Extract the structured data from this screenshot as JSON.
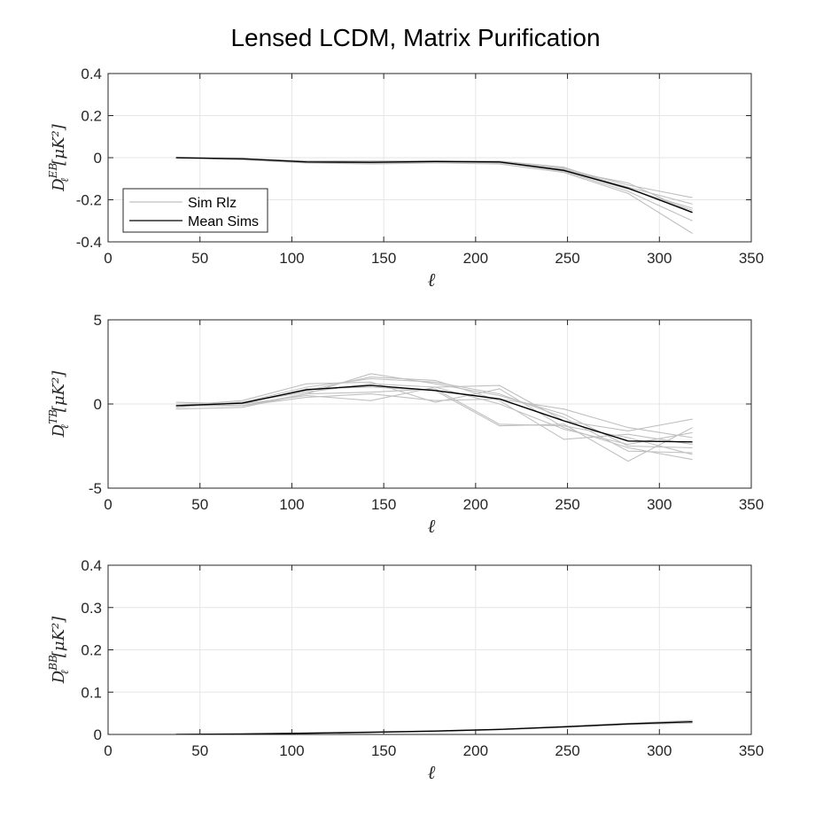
{
  "figure": {
    "title": "Lensed LCDM, Matrix Purification"
  },
  "colors": {
    "sims": "#c0c0c0",
    "mean": "#000000",
    "grid": "#e6e6e6",
    "axes": "#262626"
  },
  "chart_data": [
    {
      "type": "line",
      "name": "EB",
      "xlabel": "ℓ",
      "ylabel_main": "D",
      "ylabel_sub": "ℓ",
      "ylabel_sup": "EB",
      "ylabel_unit": "[μK²]",
      "xlim": [
        0,
        350
      ],
      "ylim": [
        -0.4,
        0.4
      ],
      "xticks": [
        0,
        50,
        100,
        150,
        200,
        250,
        300,
        350
      ],
      "yticks": [
        -0.4,
        -0.2,
        0,
        0.2,
        0.4
      ],
      "ytick_labels": [
        "-0.4",
        "-0.2",
        "0",
        "0.2",
        "0.4"
      ],
      "grid": true,
      "legend": {
        "location": "bottom-left",
        "entries": [
          "Sim Rlz",
          "Mean Sims"
        ]
      },
      "x": [
        37,
        73,
        108,
        143,
        178,
        213,
        248,
        283,
        318
      ],
      "series": [
        {
          "role": "sim",
          "values": [
            0.0,
            -0.005,
            -0.02,
            -0.025,
            -0.02,
            -0.02,
            -0.06,
            -0.15,
            -0.24
          ]
        },
        {
          "role": "sim",
          "values": [
            0.0,
            -0.01,
            -0.025,
            -0.03,
            -0.025,
            -0.03,
            -0.07,
            -0.17,
            -0.36
          ]
        },
        {
          "role": "sim",
          "values": [
            0.0,
            -0.005,
            -0.015,
            -0.015,
            -0.015,
            -0.02,
            -0.05,
            -0.13,
            -0.19
          ]
        },
        {
          "role": "sim",
          "values": [
            0.0,
            -0.008,
            -0.02,
            -0.02,
            -0.018,
            -0.025,
            -0.055,
            -0.14,
            -0.22
          ]
        },
        {
          "role": "sim",
          "values": [
            0.0,
            -0.006,
            -0.018,
            -0.022,
            -0.02,
            -0.018,
            -0.06,
            -0.12,
            -0.26
          ]
        },
        {
          "role": "sim",
          "values": [
            0.0,
            -0.007,
            -0.022,
            -0.028,
            -0.022,
            -0.022,
            -0.065,
            -0.16,
            -0.3
          ]
        },
        {
          "role": "sim",
          "values": [
            0.0,
            -0.004,
            -0.02,
            -0.018,
            -0.015,
            -0.016,
            -0.045,
            -0.145,
            -0.25
          ]
        },
        {
          "role": "mean",
          "values": [
            0.0,
            -0.005,
            -0.02,
            -0.022,
            -0.018,
            -0.02,
            -0.06,
            -0.145,
            -0.26
          ]
        }
      ]
    },
    {
      "type": "line",
      "name": "TB",
      "xlabel": "ℓ",
      "ylabel_main": "D",
      "ylabel_sub": "ℓ",
      "ylabel_sup": "TB",
      "ylabel_unit": "[μK²]",
      "xlim": [
        0,
        350
      ],
      "ylim": [
        -5,
        5
      ],
      "xticks": [
        0,
        50,
        100,
        150,
        200,
        250,
        300,
        350
      ],
      "yticks": [
        -5,
        0,
        5
      ],
      "ytick_labels": [
        "-5",
        "0",
        "5"
      ],
      "grid": true,
      "x": [
        37,
        73,
        108,
        143,
        178,
        213,
        248,
        283,
        318
      ],
      "series": [
        {
          "role": "sim",
          "values": [
            -0.3,
            -0.2,
            0.6,
            1.8,
            1.2,
            0.5,
            -0.6,
            -2.5,
            -2.6
          ]
        },
        {
          "role": "sim",
          "values": [
            0.1,
            0.0,
            0.5,
            0.2,
            1.0,
            1.1,
            -1.0,
            -1.6,
            -0.9
          ]
        },
        {
          "role": "sim",
          "values": [
            -0.1,
            0.2,
            1.2,
            1.3,
            0.1,
            0.9,
            -1.4,
            -2.6,
            -3.3
          ]
        },
        {
          "role": "sim",
          "values": [
            -0.2,
            0.1,
            0.8,
            1.6,
            1.4,
            0.2,
            -2.1,
            -1.8,
            -2.4
          ]
        },
        {
          "role": "sim",
          "values": [
            0.0,
            0.0,
            0.9,
            1.0,
            0.8,
            -1.3,
            -1.2,
            -3.4,
            -1.4
          ]
        },
        {
          "role": "sim",
          "values": [
            -0.1,
            -0.1,
            0.4,
            0.6,
            0.2,
            0.3,
            -0.3,
            -1.4,
            -2.0
          ]
        },
        {
          "role": "sim",
          "values": [
            -0.2,
            0.1,
            1.0,
            1.5,
            1.3,
            0.6,
            -0.8,
            -2.8,
            -2.9
          ]
        },
        {
          "role": "sim",
          "values": [
            0.0,
            -0.1,
            0.6,
            0.7,
            0.9,
            -1.2,
            -1.3,
            -2.0,
            -3.0
          ]
        },
        {
          "role": "sim",
          "values": [
            -0.1,
            0.1,
            0.7,
            1.2,
            1.0,
            0.0,
            -1.5,
            -2.4,
            -1.7
          ]
        },
        {
          "role": "mean",
          "values": [
            -0.1,
            0.05,
            0.85,
            1.1,
            0.8,
            0.3,
            -1.0,
            -2.2,
            -2.25
          ]
        }
      ]
    },
    {
      "type": "line",
      "name": "BB",
      "xlabel": "ℓ",
      "ylabel_main": "D",
      "ylabel_sub": "ℓ",
      "ylabel_sup": "BB",
      "ylabel_unit": "[μK²]",
      "xlim": [
        0,
        350
      ],
      "ylim": [
        0,
        0.4
      ],
      "xticks": [
        0,
        50,
        100,
        150,
        200,
        250,
        300,
        350
      ],
      "yticks": [
        0,
        0.1,
        0.2,
        0.3,
        0.4
      ],
      "ytick_labels": [
        "0",
        "0.1",
        "0.2",
        "0.3",
        "0.4"
      ],
      "grid": true,
      "x": [
        37,
        73,
        108,
        143,
        178,
        213,
        248,
        283,
        318
      ],
      "series": [
        {
          "role": "sim",
          "values": [
            0.0,
            0.001,
            0.003,
            0.006,
            0.008,
            0.012,
            0.019,
            0.026,
            0.033
          ]
        },
        {
          "role": "sim",
          "values": [
            0.0,
            0.001,
            0.002,
            0.005,
            0.007,
            0.011,
            0.017,
            0.023,
            0.027
          ]
        },
        {
          "role": "sim",
          "values": [
            0.0,
            0.001,
            0.003,
            0.005,
            0.008,
            0.012,
            0.018,
            0.025,
            0.03
          ]
        },
        {
          "role": "mean",
          "values": [
            0.0,
            0.001,
            0.003,
            0.005,
            0.008,
            0.012,
            0.018,
            0.025,
            0.03
          ]
        }
      ]
    }
  ]
}
